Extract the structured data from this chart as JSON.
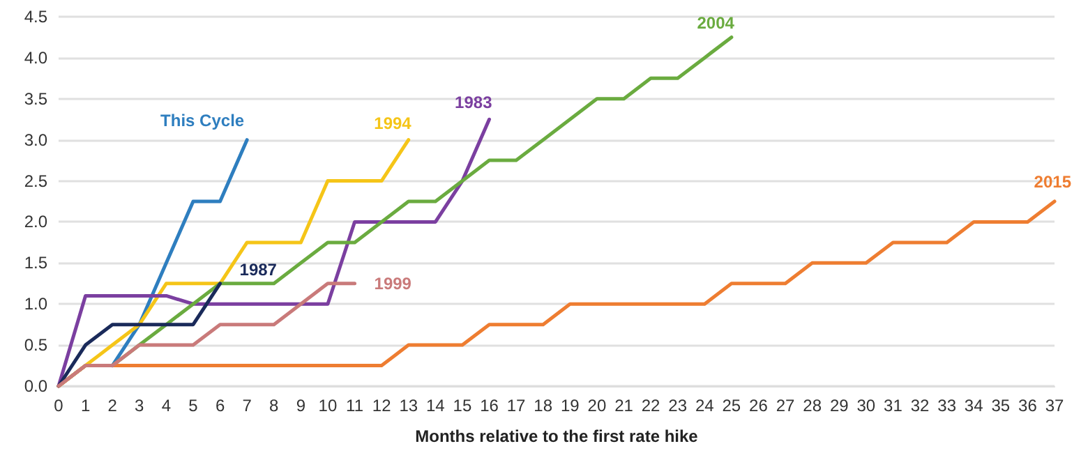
{
  "chart_data": {
    "type": "line",
    "xlabel": "Months relative to the first rate hike",
    "xlim": [
      0,
      37
    ],
    "xticks": [
      0,
      1,
      2,
      3,
      4,
      5,
      6,
      7,
      8,
      9,
      10,
      11,
      12,
      13,
      14,
      15,
      16,
      17,
      18,
      19,
      20,
      21,
      22,
      23,
      24,
      25,
      26,
      27,
      28,
      29,
      30,
      31,
      32,
      33,
      34,
      35,
      36,
      37
    ],
    "ylim": [
      0,
      4.5
    ],
    "yticks": [
      {
        "value": 0,
        "label": "0.0"
      },
      {
        "value": 0.5,
        "label": "0.5"
      },
      {
        "value": 1,
        "label": "1.0"
      },
      {
        "value": 1.5,
        "label": "1.5"
      },
      {
        "value": 2,
        "label": "2.0"
      },
      {
        "value": 2.5,
        "label": "2.5"
      },
      {
        "value": 3,
        "label": "3.0"
      },
      {
        "value": 3.5,
        "label": "3.5"
      },
      {
        "value": 4,
        "label": "4.0"
      },
      {
        "value": 4.5,
        "label": "4.5"
      }
    ],
    "grid": "y",
    "legend": false,
    "marker": "none",
    "line_style": "solid",
    "series": [
      {
        "name": "This Cycle",
        "color": "#2e7ebf",
        "x": [
          2,
          3,
          4,
          5,
          6,
          7
        ],
        "values": [
          0.25,
          0.75,
          1.5,
          2.25,
          2.25,
          3.0
        ]
      },
      {
        "name": "1994",
        "color": "#f5c518",
        "x": [
          0,
          1,
          2,
          3,
          4,
          5,
          6,
          7,
          8,
          9,
          10,
          11,
          12,
          13
        ],
        "values": [
          0,
          0.25,
          0.5,
          0.75,
          1.25,
          1.25,
          1.25,
          1.75,
          1.75,
          1.75,
          2.5,
          2.5,
          2.5,
          3.0
        ]
      },
      {
        "name": "1983",
        "color": "#7b3fa0",
        "x": [
          0,
          1,
          2,
          3,
          4,
          5,
          6,
          7,
          8,
          9,
          10,
          11,
          12,
          13,
          14,
          15,
          16
        ],
        "values": [
          0,
          1.1,
          1.1,
          1.1,
          1.1,
          1.0,
          1.0,
          1.0,
          1.0,
          1.0,
          1.0,
          2.0,
          2.0,
          2.0,
          2.0,
          2.5,
          3.25
        ]
      },
      {
        "name": "2004",
        "color": "#6aab3f",
        "x": [
          0,
          1,
          2,
          3,
          4,
          5,
          6,
          7,
          8,
          9,
          10,
          11,
          12,
          13,
          14,
          15,
          16,
          17,
          18,
          19,
          20,
          21,
          22,
          23,
          24,
          25
        ],
        "values": [
          0,
          0.25,
          0.25,
          0.5,
          0.75,
          1.0,
          1.25,
          1.25,
          1.25,
          1.5,
          1.75,
          1.75,
          2.0,
          2.25,
          2.25,
          2.5,
          2.75,
          2.75,
          3.0,
          3.25,
          3.5,
          3.5,
          3.75,
          3.75,
          4.0,
          4.25
        ]
      },
      {
        "name": "2015",
        "color": "#ee7d31",
        "x": [
          0,
          1,
          2,
          3,
          4,
          5,
          6,
          7,
          8,
          9,
          10,
          11,
          12,
          13,
          14,
          15,
          16,
          17,
          18,
          19,
          20,
          21,
          22,
          23,
          24,
          25,
          26,
          27,
          28,
          29,
          30,
          31,
          32,
          33,
          34,
          35,
          36,
          37
        ],
        "values": [
          0,
          0.25,
          0.25,
          0.25,
          0.25,
          0.25,
          0.25,
          0.25,
          0.25,
          0.25,
          0.25,
          0.25,
          0.25,
          0.5,
          0.5,
          0.5,
          0.75,
          0.75,
          0.75,
          1.0,
          1.0,
          1.0,
          1.0,
          1.0,
          1.0,
          1.25,
          1.25,
          1.25,
          1.5,
          1.5,
          1.5,
          1.75,
          1.75,
          1.75,
          2.0,
          2.0,
          2.0,
          2.25
        ]
      },
      {
        "name": "1987",
        "color": "#1a2a5a",
        "x": [
          0,
          1,
          2,
          3,
          4,
          5,
          6
        ],
        "values": [
          0,
          0.5,
          0.75,
          0.75,
          0.75,
          0.75,
          1.25
        ]
      },
      {
        "name": "1999",
        "color": "#c97a7a",
        "x": [
          0,
          1,
          2,
          3,
          4,
          5,
          6,
          7,
          8,
          9,
          10,
          11
        ],
        "values": [
          0,
          0.25,
          0.25,
          0.5,
          0.5,
          0.5,
          0.75,
          0.75,
          0.75,
          1.0,
          1.25,
          1.25
        ]
      }
    ]
  }
}
